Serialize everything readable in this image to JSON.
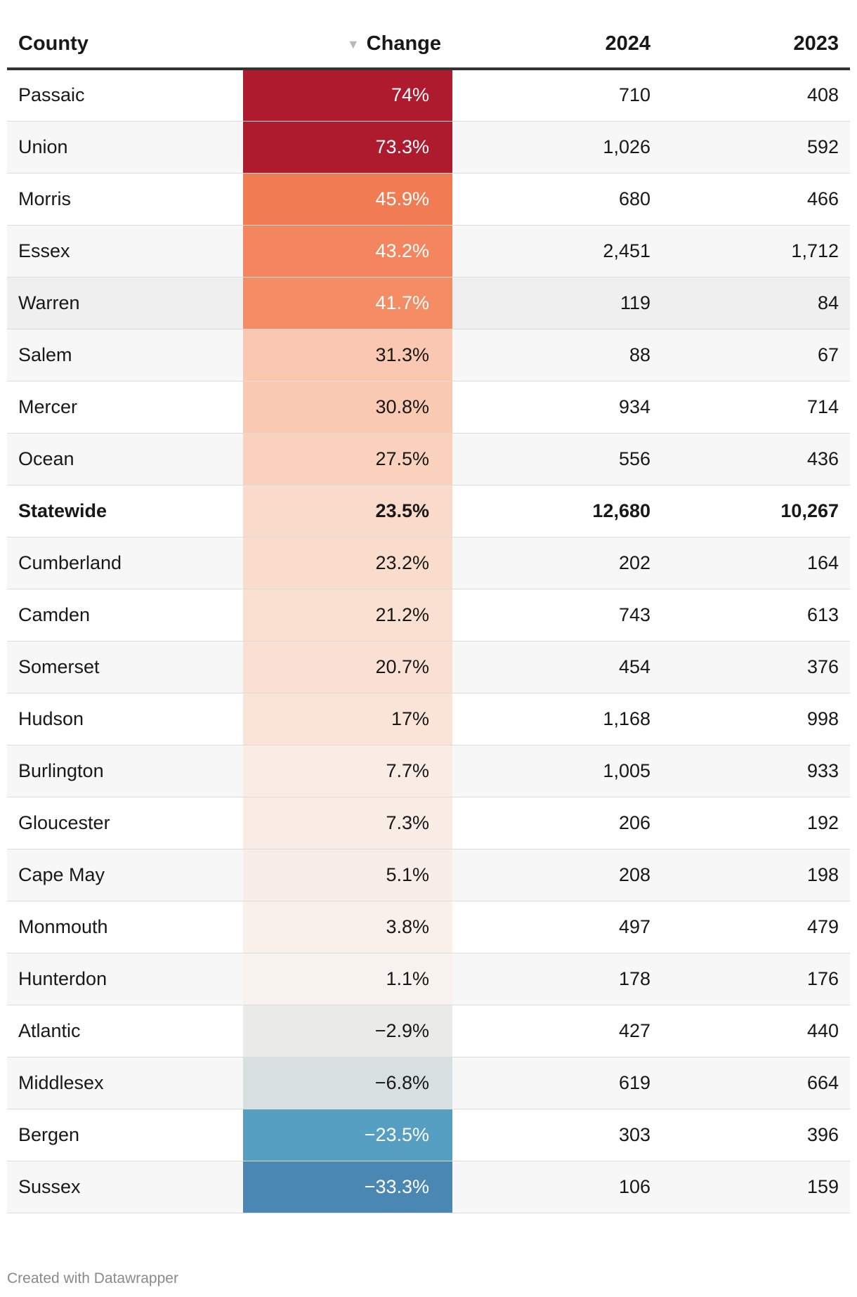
{
  "chart_data": {
    "type": "table",
    "columns": [
      "County",
      "Change",
      "2024",
      "2023"
    ],
    "sort": {
      "column": "Change",
      "direction": "descending",
      "indicator": "▼"
    },
    "rows": [
      {
        "county": "Passaic",
        "change": "74%",
        "change_value": 74.0,
        "y2024": "710",
        "y2023": "408"
      },
      {
        "county": "Union",
        "change": "73.3%",
        "change_value": 73.3,
        "y2024": "1,026",
        "y2023": "592"
      },
      {
        "county": "Morris",
        "change": "45.9%",
        "change_value": 45.9,
        "y2024": "680",
        "y2023": "466"
      },
      {
        "county": "Essex",
        "change": "43.2%",
        "change_value": 43.2,
        "y2024": "2,451",
        "y2023": "1,712"
      },
      {
        "county": "Warren",
        "change": "41.7%",
        "change_value": 41.7,
        "y2024": "119",
        "y2023": "84",
        "highlight": true
      },
      {
        "county": "Salem",
        "change": "31.3%",
        "change_value": 31.3,
        "y2024": "88",
        "y2023": "67"
      },
      {
        "county": "Mercer",
        "change": "30.8%",
        "change_value": 30.8,
        "y2024": "934",
        "y2023": "714"
      },
      {
        "county": "Ocean",
        "change": "27.5%",
        "change_value": 27.5,
        "y2024": "556",
        "y2023": "436"
      },
      {
        "county": "Statewide",
        "change": "23.5%",
        "change_value": 23.5,
        "y2024": "12,680",
        "y2023": "10,267",
        "bold": true
      },
      {
        "county": "Cumberland",
        "change": "23.2%",
        "change_value": 23.2,
        "y2024": "202",
        "y2023": "164"
      },
      {
        "county": "Camden",
        "change": "21.2%",
        "change_value": 21.2,
        "y2024": "743",
        "y2023": "613"
      },
      {
        "county": "Somerset",
        "change": "20.7%",
        "change_value": 20.7,
        "y2024": "454",
        "y2023": "376"
      },
      {
        "county": "Hudson",
        "change": "17%",
        "change_value": 17.0,
        "y2024": "1,168",
        "y2023": "998"
      },
      {
        "county": "Burlington",
        "change": "7.7%",
        "change_value": 7.7,
        "y2024": "1,005",
        "y2023": "933"
      },
      {
        "county": "Gloucester",
        "change": "7.3%",
        "change_value": 7.3,
        "y2024": "206",
        "y2023": "192"
      },
      {
        "county": "Cape May",
        "change": "5.1%",
        "change_value": 5.1,
        "y2024": "208",
        "y2023": "198"
      },
      {
        "county": "Monmouth",
        "change": "3.8%",
        "change_value": 3.8,
        "y2024": "497",
        "y2023": "479"
      },
      {
        "county": "Hunterdon",
        "change": "1.1%",
        "change_value": 1.1,
        "y2024": "178",
        "y2023": "176"
      },
      {
        "county": "Atlantic",
        "change": "−2.9%",
        "change_value": -2.9,
        "y2024": "427",
        "y2023": "440"
      },
      {
        "county": "Middlesex",
        "change": "−6.8%",
        "change_value": -6.8,
        "y2024": "619",
        "y2023": "664"
      },
      {
        "county": "Bergen",
        "change": "−23.5%",
        "change_value": -23.5,
        "y2024": "303",
        "y2023": "396"
      },
      {
        "county": "Sussex",
        "change": "−33.3%",
        "change_value": -33.3,
        "y2024": "106",
        "y2023": "159"
      }
    ],
    "color_scale": {
      "positive_strong": "#ae1a2e",
      "positive_mid": "#f0744d",
      "positive_light": "#fac6ae",
      "neutral": "#f7f3ee",
      "negative_light": "#d3dcde",
      "negative_mid": "#4a98bf",
      "negative_strong": "#4a7aaa",
      "text_light": "#ffffff",
      "text_dark": "#181818"
    }
  },
  "footer": {
    "credit": "Created with Datawrapper"
  }
}
